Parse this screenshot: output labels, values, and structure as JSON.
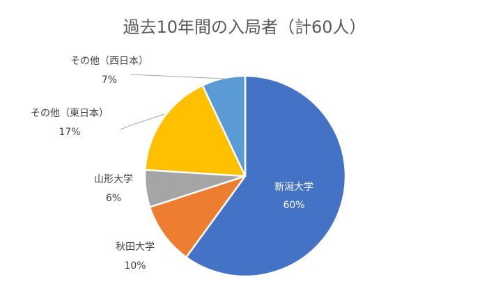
{
  "chart_data": {
    "type": "pie",
    "title": "過去10年間の入局者（計60人）",
    "start_angle_deg": 0,
    "direction": "clockwise",
    "legend": "none",
    "slices": [
      {
        "name": "新潟大学",
        "percent_label": "60%",
        "value": 60,
        "color": "#4472C4",
        "label_placement": "inside"
      },
      {
        "name": "秋田大学",
        "percent_label": "10%",
        "value": 10,
        "color": "#ED7D31",
        "label_placement": "outside-left"
      },
      {
        "name": "山形大学",
        "percent_label": "6%",
        "value": 6,
        "color": "#A5A5A5",
        "label_placement": "outside-left"
      },
      {
        "name": "その他（東日本）",
        "percent_label": "17%",
        "value": 17,
        "color": "#FFC000",
        "label_placement": "outside-leader"
      },
      {
        "name": "その他（西日本）",
        "percent_label": "7%",
        "value": 7,
        "color": "#5B9BD5",
        "label_placement": "outside-leader"
      }
    ]
  }
}
